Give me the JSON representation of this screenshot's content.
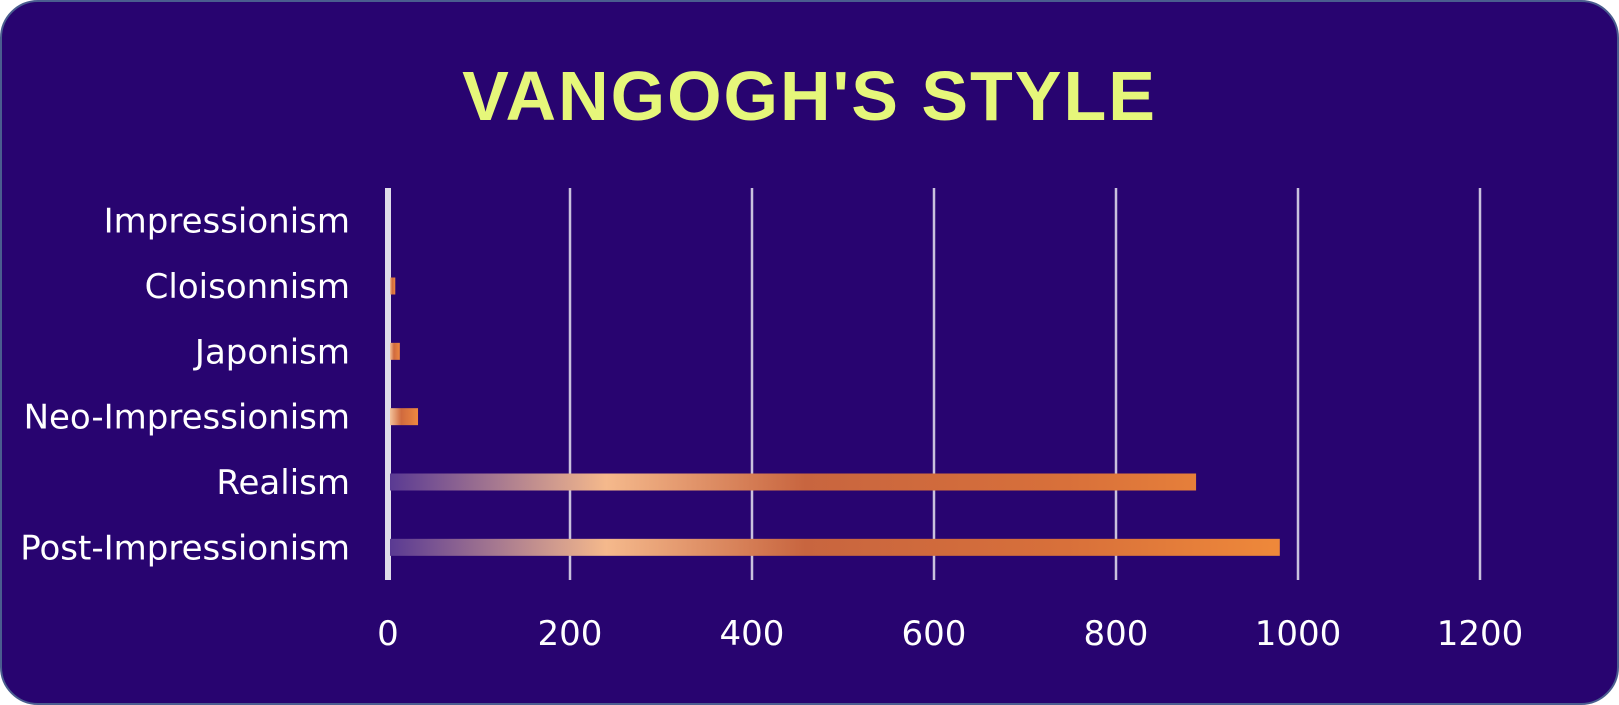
{
  "chart_data": {
    "type": "bar",
    "orientation": "horizontal",
    "title": "VANGOGH'S STYLE",
    "categories": [
      "Impressionism",
      "Cloisonnism",
      "Japonism",
      "Neo-Impressionism",
      "Realism",
      "Post-Impressionism"
    ],
    "values": [
      1,
      8,
      13,
      33,
      888,
      980
    ],
    "xlim": [
      0,
      1200
    ],
    "xticks": [
      "0",
      "200",
      "400",
      "600",
      "800",
      "1000",
      "1200"
    ],
    "grid": "vertical",
    "legend": "none"
  },
  "colors": {
    "background": "#280470",
    "title": "#e6f77a",
    "gridline": "#c9c1dd",
    "bar_start": "#5a3a93",
    "bar_mid": "#f5b98c",
    "bar_end": "#f08a3a",
    "text": "#ffffff"
  }
}
